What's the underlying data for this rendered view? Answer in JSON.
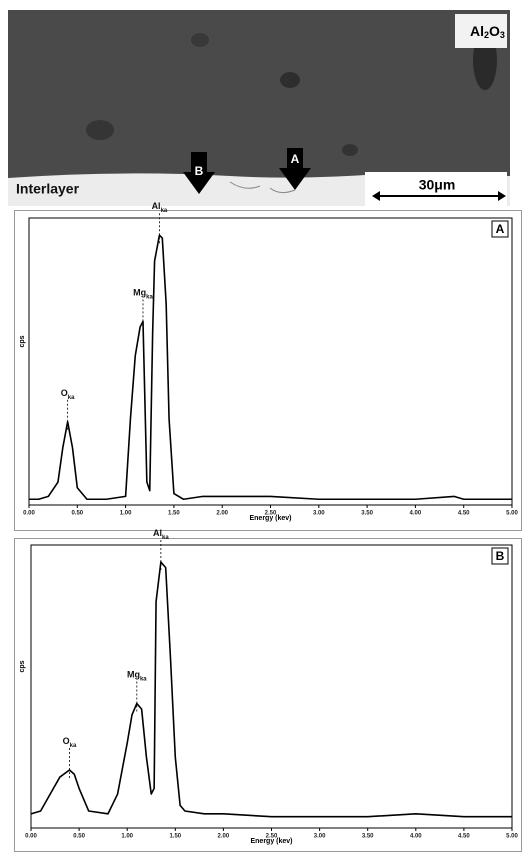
{
  "image": {
    "formula": [
      "Al",
      "2",
      "O",
      "3"
    ],
    "region_label": "Interlayer",
    "arrow_a": "A",
    "arrow_b": "B",
    "scale_bar": "30μm"
  },
  "chart_data": [
    {
      "type": "line",
      "panel": "A",
      "x_label": "Energy (kev)",
      "y_label": "cps",
      "xlim": [
        0,
        5
      ],
      "ylim": [
        0,
        100
      ],
      "xticks": [
        {
          "value": 0,
          "label": "0.00"
        },
        {
          "value": 0.5,
          "label": "0.50"
        },
        {
          "value": 1,
          "label": "1.00"
        },
        {
          "value": 1.5,
          "label": "1.50"
        },
        {
          "value": 2,
          "label": "2.00"
        },
        {
          "value": 2.5,
          "label": "2.50"
        },
        {
          "value": 3,
          "label": "3.00"
        },
        {
          "value": 3.5,
          "label": "3.50"
        },
        {
          "value": 4,
          "label": "4.00"
        },
        {
          "value": 4.5,
          "label": "4.50"
        },
        {
          "value": 5,
          "label": "5.00"
        }
      ],
      "x": [
        0,
        0.1,
        0.2,
        0.3,
        0.35,
        0.4,
        0.45,
        0.5,
        0.6,
        0.8,
        1.0,
        1.05,
        1.1,
        1.15,
        1.18,
        1.19,
        1.22,
        1.25,
        1.28,
        1.3,
        1.35,
        1.38,
        1.42,
        1.45,
        1.5,
        1.6,
        1.8,
        2.0,
        2.5,
        3.0,
        3.5,
        4.0,
        4.4,
        4.5,
        5.0
      ],
      "series": [
        {
          "color": "#000000",
          "values": [
            2,
            2,
            3,
            8,
            20,
            29,
            20,
            6,
            2,
            2,
            3,
            30,
            52,
            62,
            64,
            50,
            8,
            5,
            60,
            85,
            94,
            93,
            70,
            30,
            4,
            2,
            3,
            3,
            3,
            2,
            2,
            2,
            3,
            2,
            2
          ]
        }
      ],
      "annotations": [
        {
          "text": "O",
          "sub": "ka",
          "x": 0.4,
          "y": 29
        },
        {
          "text": "Mg",
          "sub": "ka",
          "x": 1.18,
          "y": 64
        },
        {
          "text": "Al",
          "sub": "ka",
          "x": 1.35,
          "y": 94
        }
      ]
    },
    {
      "type": "line",
      "panel": "B",
      "x_label": "Energy (kev)",
      "y_label": "cps",
      "xlim": [
        0,
        5
      ],
      "ylim": [
        0,
        100
      ],
      "xticks": [
        {
          "value": 0,
          "label": "0.00"
        },
        {
          "value": 0.5,
          "label": "0.50"
        },
        {
          "value": 1,
          "label": "1.00"
        },
        {
          "value": 1.5,
          "label": "1.50"
        },
        {
          "value": 2,
          "label": "2.00"
        },
        {
          "value": 2.5,
          "label": "2.50"
        },
        {
          "value": 3,
          "label": "3.00"
        },
        {
          "value": 3.5,
          "label": "3.50"
        },
        {
          "value": 4,
          "label": "4.00"
        },
        {
          "value": 4.5,
          "label": "4.50"
        },
        {
          "value": 5,
          "label": "5.00"
        }
      ],
      "x": [
        0,
        0.1,
        0.2,
        0.3,
        0.4,
        0.45,
        0.5,
        0.6,
        0.8,
        0.9,
        1.0,
        1.05,
        1.1,
        1.15,
        1.2,
        1.25,
        1.28,
        1.3,
        1.35,
        1.4,
        1.45,
        1.5,
        1.55,
        1.6,
        1.8,
        2.0,
        2.5,
        3.0,
        3.5,
        4.0,
        4.5,
        5.0
      ],
      "series": [
        {
          "color": "#000000",
          "values": [
            5,
            6,
            12,
            18,
            20.5,
            19,
            14,
            6,
            5,
            12,
            30,
            40,
            44,
            42,
            25,
            12,
            14,
            80,
            94,
            92,
            60,
            25,
            8,
            6,
            5,
            5,
            4,
            4,
            4,
            5,
            4,
            4
          ]
        }
      ],
      "annotations": [
        {
          "text": "O",
          "sub": "ka",
          "x": 0.4,
          "y": 20.5
        },
        {
          "text": "Mg",
          "sub": "ka",
          "x": 1.1,
          "y": 44
        },
        {
          "text": "Al",
          "sub": "ka",
          "x": 1.35,
          "y": 94
        }
      ]
    }
  ]
}
